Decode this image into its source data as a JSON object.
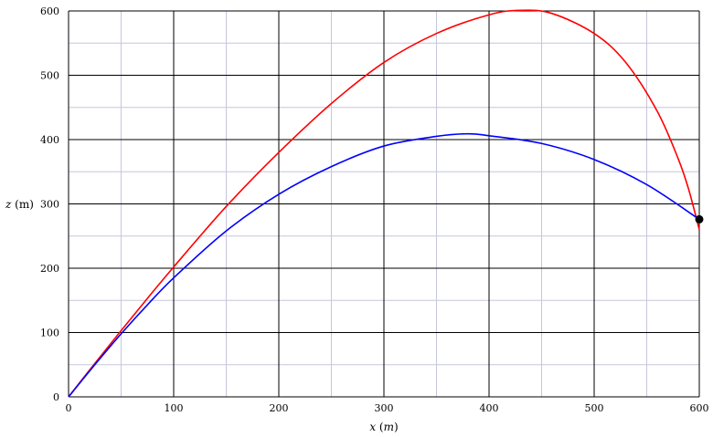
{
  "chart_data": {
    "type": "line",
    "xlabel": "x (m)",
    "xlabel_var": "x",
    "xlabel_unit_open": " (",
    "xlabel_unit": "m",
    "xlabel_unit_close": ")",
    "ylabel": "z (m)",
    "ylabel_var": "z",
    "ylabel_unit": " (m)",
    "xlim": [
      0,
      600
    ],
    "ylim": [
      0,
      600
    ],
    "x_major_ticks": [
      0,
      100,
      200,
      300,
      400,
      500,
      600
    ],
    "x_tick_labels": [
      "0",
      "100",
      "200",
      "300",
      "400",
      "500",
      "600"
    ],
    "y_major_ticks": [
      0,
      100,
      200,
      300,
      400,
      500,
      600
    ],
    "y_tick_labels": [
      "0",
      "100",
      "200",
      "300",
      "400",
      "500",
      "600"
    ],
    "x_minor_step": 50,
    "y_minor_step": 50,
    "grid": true,
    "series": [
      {
        "color": "#ff0000",
        "x": [
          0,
          25,
          50,
          75,
          100,
          150,
          200,
          250,
          300,
          350,
          400,
          430,
          460,
          500,
          530,
          560,
          580,
          590,
          600
        ],
        "y": [
          0,
          52,
          103,
          153,
          202,
          296,
          380,
          456,
          520,
          565,
          594,
          601,
          596,
          565,
          520,
          444,
          370,
          322,
          260
        ]
      },
      {
        "color": "#0000ff",
        "x": [
          0,
          25,
          50,
          75,
          100,
          150,
          200,
          250,
          300,
          350,
          380,
          400,
          450,
          500,
          550,
          600
        ],
        "y": [
          0,
          50,
          98,
          143,
          185,
          258,
          315,
          358,
          390,
          405,
          409,
          406,
          394,
          369,
          330,
          276
        ]
      }
    ],
    "marker": {
      "x": 600,
      "y": 276,
      "color": "#000000"
    }
  }
}
